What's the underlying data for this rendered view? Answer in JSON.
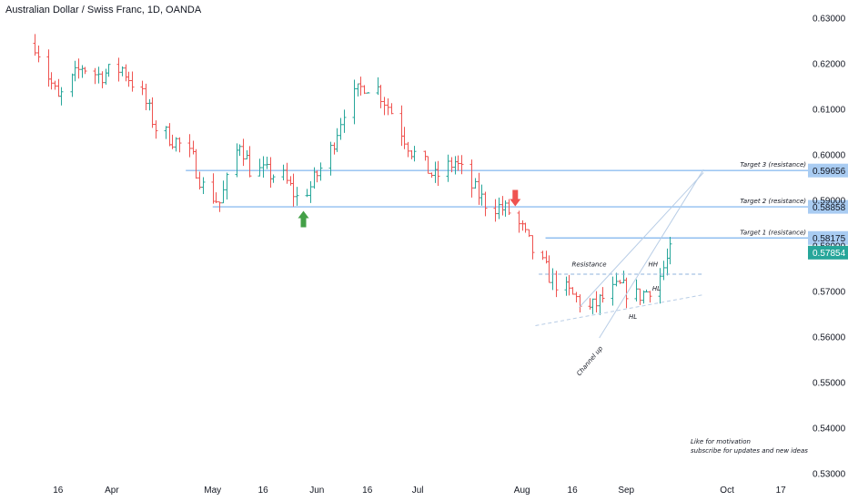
{
  "chart_data": {
    "type": "candlestick",
    "title": "Australian Dollar / Swiss Franc, 1D, OANDA",
    "colors": {
      "up": "#26a69a",
      "down": "#ef5350",
      "level": "#90bff0",
      "level_label_bg": "#a9ccf2",
      "last_bg": "#26a69a",
      "channel": "#b8cde6"
    },
    "ylim": [
      0.53,
      0.63
    ],
    "y_ticks": [
      "0.63000",
      "0.62000",
      "0.61000",
      "0.60000",
      "0.59000",
      "0.58000",
      "0.57000",
      "0.56000",
      "0.55000",
      "0.54000",
      "0.53000"
    ],
    "x_ticks": [
      {
        "label": "16",
        "d": "2023-03-16"
      },
      {
        "label": "Apr",
        "d": "2023-04-01"
      },
      {
        "label": "May",
        "d": "2023-05-01"
      },
      {
        "label": "16",
        "d": "2023-05-16"
      },
      {
        "label": "Jun",
        "d": "2023-06-01"
      },
      {
        "label": "16",
        "d": "2023-06-16"
      },
      {
        "label": "Jul",
        "d": "2023-07-01"
      },
      {
        "label": "Aug",
        "d": "2023-08-01"
      },
      {
        "label": "16",
        "d": "2023-08-16"
      },
      {
        "label": "Sep",
        "d": "2023-09-01"
      },
      {
        "label": "Oct",
        "d": "2023-10-01"
      },
      {
        "label": "17",
        "d": "2023-10-17"
      }
    ],
    "close_path": [
      [
        "2023-03-09",
        0.6245
      ],
      [
        "2023-03-16",
        0.612
      ],
      [
        "2023-03-23",
        0.6195
      ],
      [
        "2023-03-28",
        0.6175
      ],
      [
        "2023-04-04",
        0.619
      ],
      [
        "2023-04-10",
        0.613
      ],
      [
        "2023-04-14",
        0.606
      ],
      [
        "2023-04-20",
        0.603
      ],
      [
        "2023-04-25",
        0.599
      ],
      [
        "2023-04-28",
        0.593
      ],
      [
        "2023-05-03",
        0.5895
      ],
      [
        "2023-05-05",
        0.594
      ],
      [
        "2023-05-09",
        0.603
      ],
      [
        "2023-05-12",
        0.597
      ],
      [
        "2023-05-17",
        0.596
      ],
      [
        "2023-05-22",
        0.595
      ],
      [
        "2023-05-26",
        0.5905
      ],
      [
        "2023-05-30",
        0.593
      ],
      [
        "2023-06-05",
        0.601
      ],
      [
        "2023-06-09",
        0.61
      ],
      [
        "2023-06-15",
        0.6155
      ],
      [
        "2023-06-19",
        0.6145
      ],
      [
        "2023-06-23",
        0.6095
      ],
      [
        "2023-06-29",
        0.601
      ],
      [
        "2023-07-06",
        0.595
      ],
      [
        "2023-07-12",
        0.5985
      ],
      [
        "2023-07-17",
        0.593
      ],
      [
        "2023-07-21",
        0.5895
      ],
      [
        "2023-07-25",
        0.5885
      ],
      [
        "2023-07-28",
        0.5875
      ],
      [
        "2023-08-01",
        0.5835
      ],
      [
        "2023-08-04",
        0.579
      ],
      [
        "2023-08-10",
        0.5725
      ],
      [
        "2023-08-16",
        0.569
      ],
      [
        "2023-08-21",
        0.566
      ],
      [
        "2023-08-25",
        0.5685
      ],
      [
        "2023-08-30",
        0.571
      ],
      [
        "2023-09-04",
        0.569
      ],
      [
        "2023-09-07",
        0.57
      ],
      [
        "2023-09-11",
        0.5735
      ],
      [
        "2023-09-14",
        0.5785
      ]
    ],
    "levels": [
      {
        "name": "Target 3 (resistance)",
        "value": 0.59656,
        "label": "0.59656",
        "from": "2023-04-23"
      },
      {
        "name": "Target 2 (resistance)",
        "value": 0.58858,
        "label": "0.58858",
        "from": "2023-05-01"
      },
      {
        "name": "Target 1 (resistance)",
        "value": 0.58175,
        "label": "0.58175",
        "from": "2023-08-08"
      }
    ],
    "last_price": {
      "value": 0.57854,
      "label": "0.57854"
    },
    "resistance_line": {
      "name": "Resistance",
      "value": 0.5738,
      "from": "2023-08-06",
      "to": "2023-09-24"
    },
    "channel": {
      "name": "Channel up",
      "lower": [
        [
          "2023-08-05",
          0.5625
        ],
        [
          "2023-09-24",
          0.5693
        ]
      ],
      "upper": [
        [
          "2023-08-18",
          0.5665
        ],
        [
          "2023-09-24",
          0.5961
        ]
      ],
      "outer": [
        [
          "2023-08-24",
          0.5598
        ],
        [
          "2023-09-24",
          0.5968
        ]
      ]
    },
    "markers": [
      {
        "type": "arrow-up",
        "color": "#43a047",
        "d": "2023-05-28",
        "value": 0.5857
      },
      {
        "type": "arrow-down",
        "color": "#ef5350",
        "d": "2023-07-30",
        "value": 0.5903
      }
    ],
    "annotations": [
      {
        "text": "Resistance",
        "d": "2023-08-21",
        "value": 0.5755
      },
      {
        "text": "HH",
        "d": "2023-09-09",
        "value": 0.5755
      },
      {
        "text": "HL",
        "d": "2023-09-10",
        "value": 0.5702
      },
      {
        "text": "HL",
        "d": "2023-09-03",
        "value": 0.564
      }
    ],
    "footer_note": [
      "Like for motivation",
      "subscribe for updates and new ideas"
    ]
  }
}
